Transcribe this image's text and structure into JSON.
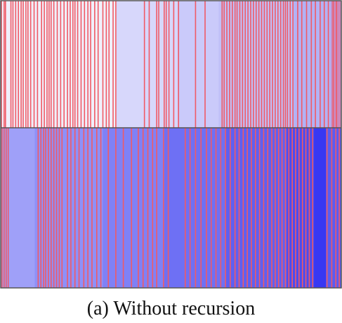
{
  "caption": "(a) Without recursion",
  "colors": {
    "event_line": "#f05a66",
    "border": "#555555"
  },
  "chart_data": [
    {
      "type": "heatmap",
      "title": "",
      "xlabel": "",
      "ylabel": "",
      "grid": false,
      "legend": "none",
      "background_segments": [
        {
          "start": 0.0,
          "end": 0.34,
          "color": "#f0f0fb"
        },
        {
          "start": 0.34,
          "end": 0.52,
          "color": "#d7d7fb"
        },
        {
          "start": 0.52,
          "end": 0.64,
          "color": "#cacafa"
        },
        {
          "start": 0.64,
          "end": 0.86,
          "color": "#c0c0f8"
        },
        {
          "start": 0.86,
          "end": 0.97,
          "color": "#b2b2f5"
        },
        {
          "start": 0.97,
          "end": 1.0,
          "color": "#cc88bb"
        }
      ],
      "event_positions": [
        0.002,
        0.01,
        0.014,
        0.03,
        0.036,
        0.044,
        0.052,
        0.06,
        0.066,
        0.074,
        0.08,
        0.088,
        0.098,
        0.108,
        0.12,
        0.128,
        0.136,
        0.142,
        0.148,
        0.156,
        0.166,
        0.176,
        0.186,
        0.196,
        0.204,
        0.212,
        0.218,
        0.226,
        0.236,
        0.246,
        0.256,
        0.264,
        0.276,
        0.286,
        0.3,
        0.31,
        0.318,
        0.33,
        0.338,
        0.422,
        0.436,
        0.458,
        0.464,
        0.48,
        0.486,
        0.494,
        0.508,
        0.522,
        0.572,
        0.6,
        0.65,
        0.656,
        0.664,
        0.672,
        0.68,
        0.688,
        0.694,
        0.702,
        0.71,
        0.718,
        0.726,
        0.734,
        0.742,
        0.75,
        0.758,
        0.766,
        0.774,
        0.782,
        0.79,
        0.798,
        0.806,
        0.814,
        0.822,
        0.83,
        0.836,
        0.842,
        0.85,
        0.858,
        0.872,
        0.884,
        0.898,
        0.912,
        0.924,
        0.938,
        0.95,
        0.962,
        0.976,
        0.986
      ]
    },
    {
      "type": "heatmap",
      "title": "",
      "xlabel": "",
      "ylabel": "",
      "grid": false,
      "legend": "none",
      "background_segments": [
        {
          "start": 0.0,
          "end": 0.1,
          "color": "#9fa0f8"
        },
        {
          "start": 0.1,
          "end": 0.3,
          "color": "#8e90f8"
        },
        {
          "start": 0.3,
          "end": 0.48,
          "color": "#7f81f6"
        },
        {
          "start": 0.48,
          "end": 0.66,
          "color": "#6e70f4"
        },
        {
          "start": 0.66,
          "end": 0.84,
          "color": "#5e60f2"
        },
        {
          "start": 0.84,
          "end": 0.92,
          "color": "#4a4cf0"
        },
        {
          "start": 0.92,
          "end": 0.955,
          "color": "#3838f2"
        },
        {
          "start": 0.955,
          "end": 1.0,
          "color": "#5a5cf2"
        }
      ],
      "event_positions": [
        0.004,
        0.01,
        0.016,
        0.022,
        0.11,
        0.118,
        0.126,
        0.132,
        0.14,
        0.148,
        0.156,
        0.164,
        0.172,
        0.18,
        0.196,
        0.206,
        0.218,
        0.23,
        0.244,
        0.256,
        0.268,
        0.282,
        0.294,
        0.316,
        0.338,
        0.36,
        0.384,
        0.404,
        0.418,
        0.432,
        0.446,
        0.458,
        0.478,
        0.492,
        0.542,
        0.556,
        0.572,
        0.588,
        0.604,
        0.618,
        0.632,
        0.646,
        0.66,
        0.674,
        0.688,
        0.7,
        0.712,
        0.724,
        0.736,
        0.748,
        0.76,
        0.772,
        0.784,
        0.796,
        0.806,
        0.816,
        0.826,
        0.836,
        0.846,
        0.856,
        0.866,
        0.876,
        0.886,
        0.896,
        0.906,
        0.916,
        0.958,
        0.972,
        0.984,
        0.994
      ]
    }
  ]
}
